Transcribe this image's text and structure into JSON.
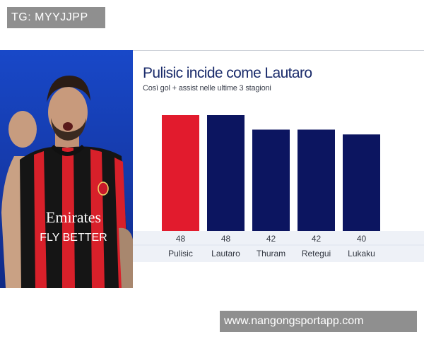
{
  "watermarks": {
    "top": "TG: MYYJJPP",
    "bottom": "www.nangongsportapp.com"
  },
  "photo": {
    "shirt_sponsor_line1": "Emirates",
    "shirt_sponsor_line2": "FLY BETTER",
    "colors": {
      "background": "#1848c8",
      "stripe_red": "#d8202a",
      "stripe_black": "#151515"
    }
  },
  "chart_data": {
    "type": "bar",
    "title": "Pulisic incide come Lautaro",
    "subtitle": "Così gol + assist nelle ultime 3 stagioni",
    "categories": [
      "Pulisic",
      "Lautaro",
      "Thuram",
      "Retegui",
      "Lukaku"
    ],
    "values": [
      48,
      48,
      42,
      42,
      40
    ],
    "bar_colors": [
      "#e21b2d",
      "#0c1560",
      "#0c1560",
      "#0c1560",
      "#0c1560"
    ],
    "ylim": [
      0,
      48
    ],
    "grid": false,
    "legend": "none"
  }
}
